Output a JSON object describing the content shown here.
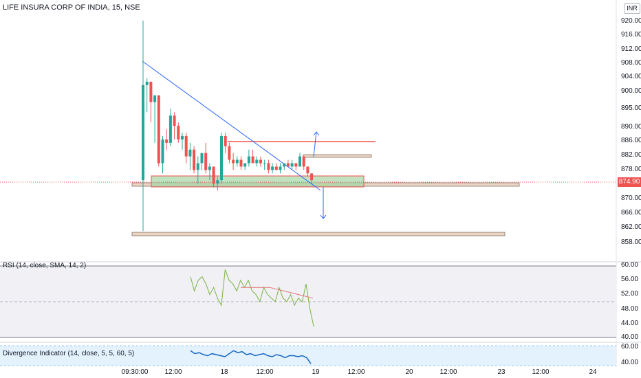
{
  "symbol_title": "LIFE INSURA CORP OF INDIA, 15, NSE",
  "currency": "INR",
  "current_price": "874.90",
  "price_axis": [
    "920.00",
    "916.00",
    "912.00",
    "908.00",
    "904.00",
    "900.00",
    "895.00",
    "890.00",
    "886.00",
    "882.00",
    "878.00",
    "870.00",
    "866.00",
    "862.00",
    "858.00"
  ],
  "time_axis": [
    "09:30:00",
    "12:00",
    "18",
    "12:00",
    "19",
    "12:00",
    "20",
    "12:00",
    "23",
    "12:00",
    "24"
  ],
  "rsi": {
    "label": "RSI (14, close, SMA, 14, 2)",
    "axis": [
      "60.00",
      "56.00",
      "52.00",
      "48.00",
      "44.00",
      "40.00"
    ]
  },
  "divergence": {
    "label": "Divergence Indicator (14, close, 5, 5, 60, 5)",
    "axis": [
      "60.00",
      "40.00"
    ]
  },
  "colors": {
    "up": "#26a69a",
    "down": "#ef5350",
    "trendline": "#2962ff",
    "rsi_line": "#7cb342",
    "rsi_ma": "#e57373",
    "zone_fill": "#a5d6a7",
    "level_fill": "#e8d5c4"
  },
  "chart_data": {
    "type": "candlestick",
    "price_ylim": [
      856,
      922
    ],
    "candles": [
      {
        "o": 875,
        "h": 922,
        "l": 860,
        "c": 903
      },
      {
        "o": 903,
        "h": 905,
        "l": 895,
        "c": 904
      },
      {
        "o": 904,
        "h": 904,
        "l": 892,
        "c": 898
      },
      {
        "o": 898,
        "h": 900,
        "l": 886,
        "c": 900
      },
      {
        "o": 900,
        "h": 900,
        "l": 879,
        "c": 880
      },
      {
        "o": 880,
        "h": 888,
        "l": 877,
        "c": 887
      },
      {
        "o": 887,
        "h": 890,
        "l": 884,
        "c": 886
      },
      {
        "o": 886,
        "h": 896,
        "l": 885,
        "c": 894
      },
      {
        "o": 894,
        "h": 895,
        "l": 887,
        "c": 891
      },
      {
        "o": 891,
        "h": 892,
        "l": 886,
        "c": 887
      },
      {
        "o": 887,
        "h": 889,
        "l": 884,
        "c": 888
      },
      {
        "o": 888,
        "h": 889,
        "l": 880,
        "c": 882
      },
      {
        "o": 882,
        "h": 886,
        "l": 878,
        "c": 884
      },
      {
        "o": 884,
        "h": 885,
        "l": 877,
        "c": 878
      },
      {
        "o": 878,
        "h": 882,
        "l": 874,
        "c": 880
      },
      {
        "o": 880,
        "h": 883,
        "l": 878,
        "c": 883
      },
      {
        "o": 883,
        "h": 886,
        "l": 877,
        "c": 878
      },
      {
        "o": 878,
        "h": 880,
        "l": 875,
        "c": 879
      },
      {
        "o": 879,
        "h": 879,
        "l": 873,
        "c": 874
      },
      {
        "o": 874,
        "h": 876,
        "l": 872,
        "c": 875
      },
      {
        "o": 875,
        "h": 889,
        "l": 874,
        "c": 888
      },
      {
        "o": 888,
        "h": 889,
        "l": 883,
        "c": 885
      },
      {
        "o": 885,
        "h": 886,
        "l": 880,
        "c": 881
      },
      {
        "o": 881,
        "h": 883,
        "l": 878,
        "c": 880
      },
      {
        "o": 880,
        "h": 882,
        "l": 879,
        "c": 881
      },
      {
        "o": 881,
        "h": 882,
        "l": 878,
        "c": 879
      },
      {
        "o": 879,
        "h": 880,
        "l": 878,
        "c": 880
      },
      {
        "o": 880,
        "h": 884,
        "l": 879,
        "c": 882
      },
      {
        "o": 882,
        "h": 884,
        "l": 880,
        "c": 880
      },
      {
        "o": 880,
        "h": 882,
        "l": 879,
        "c": 881
      },
      {
        "o": 881,
        "h": 882,
        "l": 879,
        "c": 880
      },
      {
        "o": 880,
        "h": 881,
        "l": 878,
        "c": 880
      },
      {
        "o": 880,
        "h": 881,
        "l": 877,
        "c": 878
      },
      {
        "o": 878,
        "h": 880,
        "l": 877,
        "c": 879
      },
      {
        "o": 879,
        "h": 880,
        "l": 878,
        "c": 878
      },
      {
        "o": 878,
        "h": 880,
        "l": 877,
        "c": 879
      },
      {
        "o": 879,
        "h": 880,
        "l": 878,
        "c": 880
      },
      {
        "o": 880,
        "h": 881,
        "l": 879,
        "c": 879
      },
      {
        "o": 879,
        "h": 881,
        "l": 878,
        "c": 880
      },
      {
        "o": 880,
        "h": 880,
        "l": 878,
        "c": 879
      },
      {
        "o": 879,
        "h": 883,
        "l": 879,
        "c": 882
      },
      {
        "o": 882,
        "h": 882,
        "l": 878,
        "c": 879
      },
      {
        "o": 879,
        "h": 879,
        "l": 876,
        "c": 877
      },
      {
        "o": 877,
        "h": 877,
        "l": 874,
        "c": 875
      }
    ],
    "rsi_ylim": [
      40,
      60
    ],
    "rsi_values": [
      57,
      53,
      56,
      57,
      55,
      52,
      54,
      51,
      49,
      59,
      56,
      55,
      53,
      56,
      54,
      56,
      53,
      52,
      50,
      54,
      52,
      51,
      50,
      54,
      51,
      50,
      52,
      49,
      51,
      50,
      55,
      48,
      43
    ],
    "rsi_ma_values": [
      54,
      54,
      54,
      54,
      54,
      53.5,
      53,
      52.5,
      52,
      51.5,
      51
    ],
    "divergence_ylim": [
      40,
      60
    ],
    "divergence_values": [
      55,
      52,
      53,
      51,
      50,
      52,
      51,
      50,
      49,
      52,
      55,
      53,
      54,
      51,
      52,
      50,
      51,
      52,
      50,
      49,
      51,
      50,
      48,
      50,
      50,
      49,
      50,
      48,
      42
    ]
  }
}
